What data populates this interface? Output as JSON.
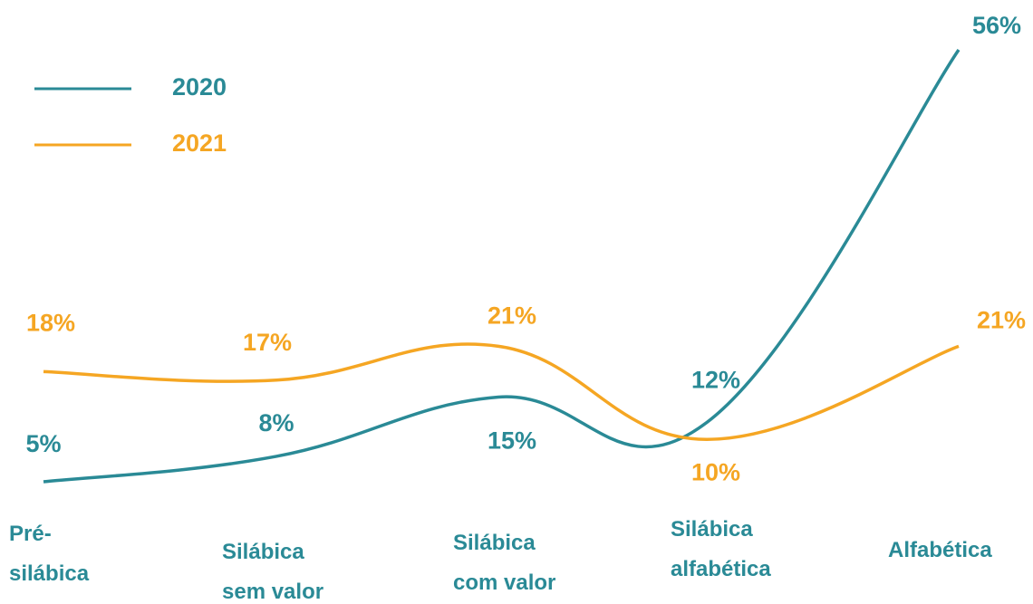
{
  "chart_data": {
    "type": "line",
    "categories": [
      "Pré-silábica",
      "Silábica sem valor",
      "Silábica com valor",
      "Silábica alfabética",
      "Alfabética"
    ],
    "series": [
      {
        "name": "2020",
        "color": "#2a8a96",
        "values": [
          5,
          8,
          15,
          12,
          56
        ],
        "value_labels": [
          "5%",
          "8%",
          "15%",
          "12%",
          "56%"
        ]
      },
      {
        "name": "2021",
        "color": "#f5a623",
        "values": [
          18,
          17,
          21,
          10,
          21
        ],
        "value_labels": [
          "18%",
          "17%",
          "21%",
          "10%",
          "21%"
        ]
      }
    ]
  }
}
